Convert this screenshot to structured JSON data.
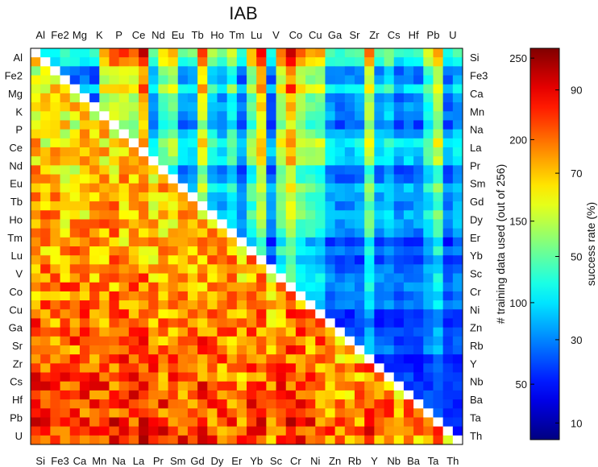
{
  "chart_data": {
    "type": "heatmap",
    "title": "IAB",
    "top_labels": [
      "Al",
      "Fe2",
      "Mg",
      "K",
      "P",
      "Ce",
      "Nd",
      "Eu",
      "Tb",
      "Ho",
      "Tm",
      "Lu",
      "V",
      "Co",
      "Cu",
      "Ga",
      "Sr",
      "Zr",
      "Cs",
      "Hf",
      "Pb",
      "U"
    ],
    "left_labels": [
      "Al",
      "Fe2",
      "Mg",
      "K",
      "P",
      "Ce",
      "Nd",
      "Eu",
      "Tb",
      "Ho",
      "Tm",
      "Lu",
      "V",
      "Co",
      "Cu",
      "Ga",
      "Sr",
      "Zr",
      "Cs",
      "Hf",
      "Pb",
      "U"
    ],
    "right_labels": [
      "Si",
      "Fe3",
      "Ca",
      "Mn",
      "Na",
      "La",
      "Pr",
      "Sm",
      "Gd",
      "Dy",
      "Er",
      "Yb",
      "Sc",
      "Cr",
      "Ni",
      "Zn",
      "Rb",
      "Y",
      "Nb",
      "Ba",
      "Ta",
      "Th"
    ],
    "bottom_labels": [
      "Si",
      "Fe3",
      "Ca",
      "Mn",
      "Na",
      "La",
      "Pr",
      "Sm",
      "Gd",
      "Dy",
      "Er",
      "Yb",
      "Sc",
      "Cr",
      "Ni",
      "Zn",
      "Rb",
      "Y",
      "Nb",
      "Ba",
      "Ta",
      "Th"
    ],
    "grid_size": 44,
    "upper_triangle_measure": "# training data used (out of 256)",
    "lower_triangle_measure": "success rate (%)",
    "left_colorbar_label": "# training data used (out of 256)",
    "right_colorbar_label": "success rate (%)",
    "left_colorbar_ticks": [
      {
        "label": "250",
        "value": 250
      },
      {
        "label": "200",
        "value": 200
      },
      {
        "label": "150",
        "value": 150
      },
      {
        "label": "100",
        "value": 100
      },
      {
        "label": "50",
        "value": 50
      }
    ],
    "left_colorbar_range": [
      16,
      256
    ],
    "right_colorbar_ticks": [
      {
        "label": "90",
        "value": 90
      },
      {
        "label": "70",
        "value": 70
      },
      {
        "label": "50",
        "value": 50
      },
      {
        "label": "30",
        "value": 30
      },
      {
        "label": "10",
        "value": 10
      }
    ],
    "right_colorbar_range": [
      6,
      100
    ],
    "color_scale": [
      "#00008f",
      "#0000ff",
      "#00ffff",
      "#ffff00",
      "#ff0000",
      "#800000"
    ],
    "diagonal_color": "#ffffff"
  }
}
